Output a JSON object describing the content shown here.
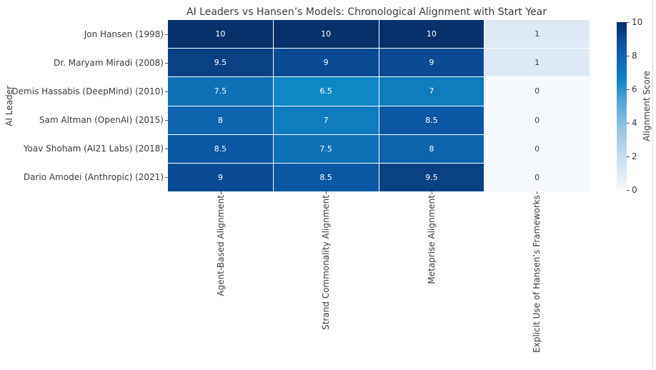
{
  "title": "AI Leaders vs Hansen’s Models: Chronological Alignment with Start Year",
  "chart_data": {
    "type": "heatmap",
    "title": "AI Leaders vs Hansen’s Models: Chronological Alignment with Start Year",
    "ylabel": "AI Leader",
    "xlabel": "",
    "colormap": "Blues",
    "legend_position": "right-colorbar",
    "colorbar_label": "Alignment Score",
    "colorbar_range": [
      0,
      10
    ],
    "colorbar_tick_labels": [
      "10",
      "8",
      "6",
      "4",
      "2",
      "0"
    ],
    "rows": [
      "Jon Hansen (1998)",
      "Dr. Maryam Miradi (2008)",
      "Demis Hassabis (DeepMind) (2010)",
      "Sam Altman (OpenAI) (2015)",
      "Yoav Shoham (AI21 Labs) (2018)",
      "Dario Amodei (Anthropic) (2021)"
    ],
    "columns": [
      "Agent-Based Alignment",
      "Strand Commonality Alignment",
      "Metaprise Alignment",
      "Explicit Use of Hansen’s Frameworks"
    ],
    "values": [
      [
        10,
        10,
        10,
        1
      ],
      [
        9.5,
        9,
        9,
        1
      ],
      [
        7.5,
        6.5,
        7,
        0
      ],
      [
        8,
        7,
        8.5,
        0
      ],
      [
        8.5,
        7.5,
        8,
        0
      ],
      [
        9,
        8.5,
        9.5,
        0
      ]
    ],
    "display_values": [
      [
        "10",
        "10",
        "10",
        "1"
      ],
      [
        "9.5",
        "9",
        "9",
        "1"
      ],
      [
        "7.5",
        "6.5",
        "7",
        "0"
      ],
      [
        "8",
        "7",
        "8.5",
        "0"
      ],
      [
        "8.5",
        "7.5",
        "8",
        "0"
      ],
      [
        "9",
        "8.5",
        "9.5",
        "0"
      ]
    ],
    "value_colors": {
      "0": {
        "bg": "#f6fafe",
        "text": "#3d3d3d"
      },
      "1": {
        "bg": "#ddeaf6",
        "text": "#3d3d3d"
      },
      "6.5": {
        "bg": "#0e87c4",
        "text": "#ffffff"
      },
      "7": {
        "bg": "#0f7cbe",
        "text": "#ffffff"
      },
      "7.5": {
        "bg": "#0e70b5",
        "text": "#ffffff"
      },
      "8": {
        "bg": "#0d64ac",
        "text": "#ffffff"
      },
      "8.5": {
        "bg": "#0b57a3",
        "text": "#ffffff"
      },
      "9": {
        "bg": "#0a4b94",
        "text": "#ffffff"
      },
      "9.5": {
        "bg": "#094183",
        "text": "#ffffff"
      },
      "10": {
        "bg": "#08316c",
        "text": "#ffffff"
      }
    },
    "colors": {
      "background": "#ffffff",
      "text": "#3a3a3a",
      "tick": "#555555",
      "gridline": "#ffffff",
      "scale_min": "#f7fbff",
      "scale_max": "#08316c"
    }
  }
}
